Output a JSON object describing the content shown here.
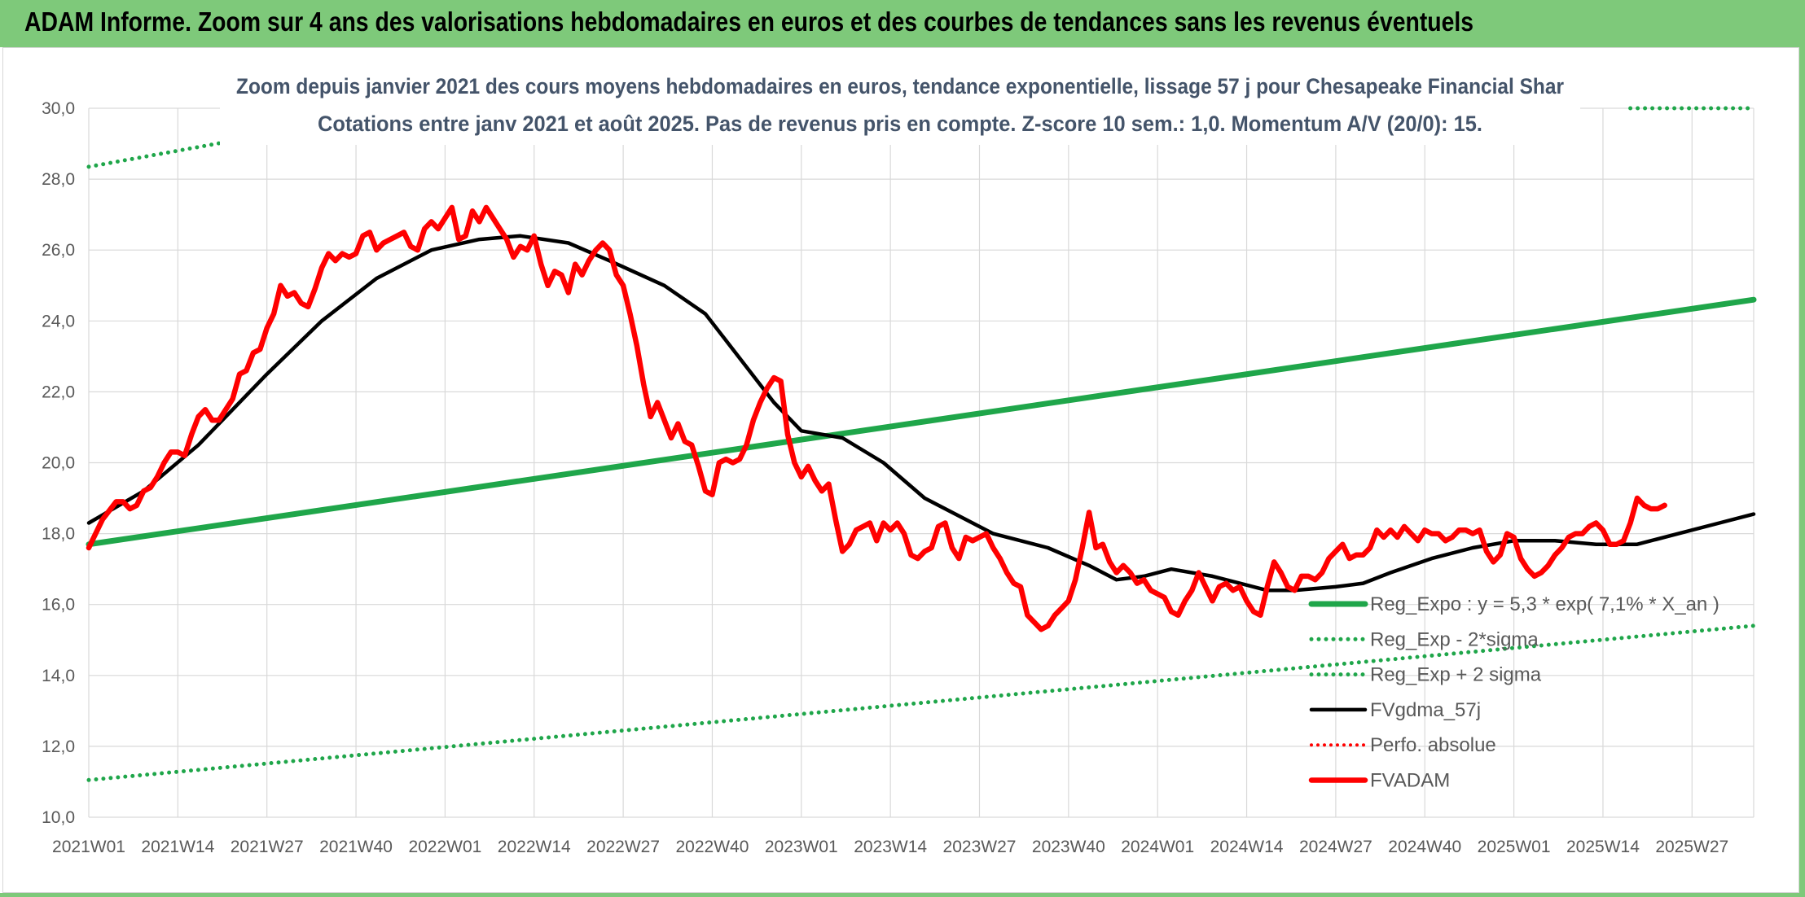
{
  "header": {
    "title": "ADAM Informe. Zoom sur 4 ans des valorisations hebdomadaires en euros et des courbes de tendances sans les revenus éventuels"
  },
  "colors": {
    "header_bg": "#7ec97a",
    "green": "#1fa64a",
    "red": "#ff0000",
    "black": "#000000",
    "subtitle": "#44546a",
    "grid": "#d9d9d9"
  },
  "chart_data": {
    "type": "line",
    "title_line1": "Zoom depuis janvier 2021 des cours moyens hebdomadaires en euros, tendance exponentielle, lissage 57 j pour Chesapeake Financial Shar",
    "title_line2": "Cotations entre janv 2021 et août 2025. Pas de revenus pris en compte. Z-score 10 sem.: 1,0. Momentum A/V (20/0): 15.",
    "ylim": [
      10,
      30
    ],
    "yticks": [
      "10,0",
      "12,0",
      "14,0",
      "16,0",
      "18,0",
      "20,0",
      "22,0",
      "24,0",
      "26,0",
      "28,0",
      "30,0"
    ],
    "xticks": [
      "2021W01",
      "2021W14",
      "2021W27",
      "2021W40",
      "2022W01",
      "2022W14",
      "2022W27",
      "2022W40",
      "2023W01",
      "2023W14",
      "2023W27",
      "2023W40",
      "2024W01",
      "2024W14",
      "2024W27",
      "2024W40",
      "2025W01",
      "2025W14",
      "2025W27"
    ],
    "x_tick_week_index": [
      0,
      13,
      26,
      39,
      52,
      65,
      78,
      91,
      104,
      117,
      130,
      143,
      156,
      169,
      182,
      195,
      208,
      221,
      234
    ],
    "x_last_week_index": 243,
    "grid": true,
    "legend_position": "bottom-right (inside plot)",
    "series": [
      {
        "name": "Reg_Expo : y = 5,3 * exp( 7,1% *  X_an )",
        "style": "solid-thick",
        "color": "#1fa64a",
        "points": [
          [
            0,
            17.7
          ],
          [
            243,
            24.6
          ]
        ]
      },
      {
        "name": "Reg_Exp - 2*sigma",
        "style": "dotted",
        "color": "#1fa64a",
        "points": [
          [
            0,
            11.05
          ],
          [
            243,
            15.4
          ]
        ]
      },
      {
        "name": "Reg_Exp + 2 sigma",
        "style": "dotted",
        "color": "#1fa64a",
        "points_visible": [
          [
            0,
            28.35
          ],
          [
            23,
            29.15
          ],
          [
            225,
            30.0
          ],
          [
            243,
            30.0
          ]
        ]
      },
      {
        "name": "FVgdma_57j",
        "style": "solid",
        "color": "#000000",
        "points": [
          [
            0,
            18.3
          ],
          [
            8,
            19.2
          ],
          [
            16,
            20.5
          ],
          [
            26,
            22.5
          ],
          [
            34,
            24.0
          ],
          [
            42,
            25.2
          ],
          [
            50,
            26.0
          ],
          [
            57,
            26.3
          ],
          [
            63,
            26.4
          ],
          [
            70,
            26.2
          ],
          [
            76,
            25.7
          ],
          [
            84,
            25.0
          ],
          [
            90,
            24.2
          ],
          [
            96,
            22.7
          ],
          [
            100,
            21.7
          ],
          [
            104,
            20.9
          ],
          [
            110,
            20.7
          ],
          [
            116,
            20.0
          ],
          [
            122,
            19.0
          ],
          [
            126,
            18.6
          ],
          [
            132,
            18.0
          ],
          [
            140,
            17.6
          ],
          [
            146,
            17.1
          ],
          [
            150,
            16.7
          ],
          [
            154,
            16.8
          ],
          [
            158,
            17.0
          ],
          [
            164,
            16.8
          ],
          [
            172,
            16.4
          ],
          [
            176,
            16.4
          ],
          [
            182,
            16.5
          ],
          [
            186,
            16.6
          ],
          [
            190,
            16.9
          ],
          [
            196,
            17.3
          ],
          [
            202,
            17.6
          ],
          [
            208,
            17.8
          ],
          [
            214,
            17.8
          ],
          [
            220,
            17.7
          ],
          [
            226,
            17.7
          ],
          [
            232,
            18.0
          ],
          [
            238,
            18.3
          ],
          [
            243,
            18.55
          ]
        ]
      },
      {
        "name": "Perfo. absolue",
        "style": "dotted",
        "color": "#ff0000",
        "points": []
      },
      {
        "name": "FVADAM",
        "style": "solid-thick",
        "color": "#ff0000",
        "points": [
          [
            0,
            17.6
          ],
          [
            2,
            18.4
          ],
          [
            4,
            18.9
          ],
          [
            5,
            18.9
          ],
          [
            6,
            18.7
          ],
          [
            7,
            18.8
          ],
          [
            8,
            19.2
          ],
          [
            9,
            19.3
          ],
          [
            10,
            19.6
          ],
          [
            11,
            20.0
          ],
          [
            12,
            20.3
          ],
          [
            13,
            20.3
          ],
          [
            14,
            20.2
          ],
          [
            15,
            20.8
          ],
          [
            16,
            21.3
          ],
          [
            17,
            21.5
          ],
          [
            18,
            21.2
          ],
          [
            19,
            21.2
          ],
          [
            20,
            21.5
          ],
          [
            21,
            21.8
          ],
          [
            22,
            22.5
          ],
          [
            23,
            22.6
          ],
          [
            24,
            23.1
          ],
          [
            25,
            23.2
          ],
          [
            26,
            23.8
          ],
          [
            27,
            24.2
          ],
          [
            28,
            25.0
          ],
          [
            29,
            24.7
          ],
          [
            30,
            24.8
          ],
          [
            31,
            24.5
          ],
          [
            32,
            24.4
          ],
          [
            33,
            24.9
          ],
          [
            34,
            25.5
          ],
          [
            35,
            25.9
          ],
          [
            36,
            25.7
          ],
          [
            37,
            25.9
          ],
          [
            38,
            25.8
          ],
          [
            39,
            25.9
          ],
          [
            40,
            26.4
          ],
          [
            41,
            26.5
          ],
          [
            42,
            26.0
          ],
          [
            43,
            26.2
          ],
          [
            44,
            26.3
          ],
          [
            45,
            26.4
          ],
          [
            46,
            26.5
          ],
          [
            47,
            26.1
          ],
          [
            48,
            26.0
          ],
          [
            49,
            26.6
          ],
          [
            50,
            26.8
          ],
          [
            51,
            26.6
          ],
          [
            52,
            26.9
          ],
          [
            53,
            27.2
          ],
          [
            54,
            26.3
          ],
          [
            55,
            26.4
          ],
          [
            56,
            27.1
          ],
          [
            57,
            26.8
          ],
          [
            58,
            27.2
          ],
          [
            59,
            26.9
          ],
          [
            60,
            26.6
          ],
          [
            61,
            26.3
          ],
          [
            62,
            25.8
          ],
          [
            63,
            26.1
          ],
          [
            64,
            26.0
          ],
          [
            65,
            26.4
          ],
          [
            66,
            25.6
          ],
          [
            67,
            25.0
          ],
          [
            68,
            25.4
          ],
          [
            69,
            25.3
          ],
          [
            70,
            24.8
          ],
          [
            71,
            25.6
          ],
          [
            72,
            25.3
          ],
          [
            73,
            25.7
          ],
          [
            74,
            26.0
          ],
          [
            75,
            26.2
          ],
          [
            76,
            26.0
          ],
          [
            77,
            25.3
          ],
          [
            78,
            25.0
          ],
          [
            79,
            24.2
          ],
          [
            80,
            23.3
          ],
          [
            81,
            22.2
          ],
          [
            82,
            21.3
          ],
          [
            83,
            21.7
          ],
          [
            84,
            21.2
          ],
          [
            85,
            20.7
          ],
          [
            86,
            21.1
          ],
          [
            87,
            20.6
          ],
          [
            88,
            20.5
          ],
          [
            89,
            19.9
          ],
          [
            90,
            19.2
          ],
          [
            91,
            19.1
          ],
          [
            92,
            20.0
          ],
          [
            93,
            20.1
          ],
          [
            94,
            20.0
          ],
          [
            95,
            20.1
          ],
          [
            96,
            20.5
          ],
          [
            97,
            21.2
          ],
          [
            98,
            21.7
          ],
          [
            99,
            22.1
          ],
          [
            100,
            22.4
          ],
          [
            101,
            22.3
          ],
          [
            102,
            20.8
          ],
          [
            103,
            20.0
          ],
          [
            104,
            19.6
          ],
          [
            105,
            19.9
          ],
          [
            106,
            19.5
          ],
          [
            107,
            19.2
          ],
          [
            108,
            19.4
          ],
          [
            109,
            18.4
          ],
          [
            110,
            17.5
          ],
          [
            111,
            17.7
          ],
          [
            112,
            18.1
          ],
          [
            113,
            18.2
          ],
          [
            114,
            18.3
          ],
          [
            115,
            17.8
          ],
          [
            116,
            18.3
          ],
          [
            117,
            18.1
          ],
          [
            118,
            18.3
          ],
          [
            119,
            18.0
          ],
          [
            120,
            17.4
          ],
          [
            121,
            17.3
          ],
          [
            122,
            17.5
          ],
          [
            123,
            17.6
          ],
          [
            124,
            18.2
          ],
          [
            125,
            18.3
          ],
          [
            126,
            17.6
          ],
          [
            127,
            17.3
          ],
          [
            128,
            17.9
          ],
          [
            129,
            17.8
          ],
          [
            130,
            17.9
          ],
          [
            131,
            18.0
          ],
          [
            132,
            17.6
          ],
          [
            133,
            17.3
          ],
          [
            134,
            16.9
          ],
          [
            135,
            16.6
          ],
          [
            136,
            16.5
          ],
          [
            137,
            15.7
          ],
          [
            138,
            15.5
          ],
          [
            139,
            15.3
          ],
          [
            140,
            15.4
          ],
          [
            141,
            15.7
          ],
          [
            142,
            15.9
          ],
          [
            143,
            16.1
          ],
          [
            144,
            16.7
          ],
          [
            145,
            17.6
          ],
          [
            146,
            18.6
          ],
          [
            147,
            17.6
          ],
          [
            148,
            17.7
          ],
          [
            149,
            17.2
          ],
          [
            150,
            16.9
          ],
          [
            151,
            17.1
          ],
          [
            152,
            16.9
          ],
          [
            153,
            16.6
          ],
          [
            154,
            16.7
          ],
          [
            155,
            16.4
          ],
          [
            156,
            16.3
          ],
          [
            157,
            16.2
          ],
          [
            158,
            15.8
          ],
          [
            159,
            15.7
          ],
          [
            160,
            16.1
          ],
          [
            161,
            16.4
          ],
          [
            162,
            16.9
          ],
          [
            163,
            16.5
          ],
          [
            164,
            16.1
          ],
          [
            165,
            16.5
          ],
          [
            166,
            16.6
          ],
          [
            167,
            16.4
          ],
          [
            168,
            16.5
          ],
          [
            169,
            16.1
          ],
          [
            170,
            15.8
          ],
          [
            171,
            15.7
          ],
          [
            172,
            16.5
          ],
          [
            173,
            17.2
          ],
          [
            174,
            16.9
          ],
          [
            175,
            16.5
          ],
          [
            176,
            16.4
          ],
          [
            177,
            16.8
          ],
          [
            178,
            16.8
          ],
          [
            179,
            16.7
          ],
          [
            180,
            16.9
          ],
          [
            181,
            17.3
          ],
          [
            182,
            17.5
          ],
          [
            183,
            17.7
          ],
          [
            184,
            17.3
          ],
          [
            185,
            17.4
          ],
          [
            186,
            17.4
          ],
          [
            187,
            17.6
          ],
          [
            188,
            18.1
          ],
          [
            189,
            17.9
          ],
          [
            190,
            18.1
          ],
          [
            191,
            17.9
          ],
          [
            192,
            18.2
          ],
          [
            193,
            18.0
          ],
          [
            194,
            17.8
          ],
          [
            195,
            18.1
          ],
          [
            196,
            18.0
          ],
          [
            197,
            18.0
          ],
          [
            198,
            17.8
          ],
          [
            199,
            17.9
          ],
          [
            200,
            18.1
          ],
          [
            201,
            18.1
          ],
          [
            202,
            18.0
          ],
          [
            203,
            18.1
          ],
          [
            204,
            17.5
          ],
          [
            205,
            17.2
          ],
          [
            206,
            17.4
          ],
          [
            207,
            18.0
          ],
          [
            208,
            17.9
          ],
          [
            209,
            17.3
          ],
          [
            210,
            17.0
          ],
          [
            211,
            16.8
          ],
          [
            212,
            16.9
          ],
          [
            213,
            17.1
          ],
          [
            214,
            17.4
          ],
          [
            215,
            17.6
          ],
          [
            216,
            17.9
          ],
          [
            217,
            18.0
          ],
          [
            218,
            18.0
          ],
          [
            219,
            18.2
          ],
          [
            220,
            18.3
          ],
          [
            221,
            18.1
          ],
          [
            222,
            17.7
          ],
          [
            223,
            17.7
          ],
          [
            224,
            17.8
          ],
          [
            225,
            18.3
          ],
          [
            226,
            19.0
          ],
          [
            227,
            18.8
          ],
          [
            228,
            18.7
          ],
          [
            229,
            18.7
          ],
          [
            230,
            18.8
          ]
        ]
      }
    ]
  }
}
